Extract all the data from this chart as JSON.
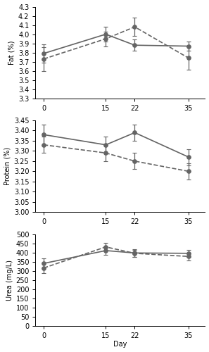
{
  "days": [
    0,
    15,
    22,
    35
  ],
  "fat": {
    "control_mean": [
      3.79,
      4.0,
      3.88,
      3.87
    ],
    "control_err": [
      0.1,
      0.08,
      0.06,
      0.05
    ],
    "treatment_mean": [
      3.73,
      3.95,
      4.08,
      3.74
    ],
    "treatment_err": [
      0.13,
      0.08,
      0.1,
      0.13
    ],
    "ylabel": "Fat (%)",
    "ylim": [
      3.3,
      4.3
    ],
    "yticks": [
      3.3,
      3.4,
      3.5,
      3.6,
      3.7,
      3.8,
      3.9,
      4.0,
      4.1,
      4.2,
      4.3
    ]
  },
  "protein": {
    "control_mean": [
      3.38,
      3.33,
      3.39,
      3.27
    ],
    "control_err": [
      0.05,
      0.04,
      0.04,
      0.04
    ],
    "treatment_mean": [
      3.33,
      3.29,
      3.25,
      3.2
    ],
    "treatment_err": [
      0.04,
      0.04,
      0.04,
      0.04
    ],
    "ylabel": "Protein (%)",
    "ylim": [
      3.0,
      3.45
    ],
    "yticks": [
      3.0,
      3.05,
      3.1,
      3.15,
      3.2,
      3.25,
      3.3,
      3.35,
      3.4,
      3.45
    ]
  },
  "urea": {
    "control_mean": [
      340,
      410,
      397,
      395
    ],
    "control_err": [
      28,
      22,
      20,
      18
    ],
    "treatment_mean": [
      315,
      430,
      395,
      378
    ],
    "treatment_err": [
      28,
      22,
      20,
      22
    ],
    "ylabel": "Urea (mg/L)",
    "ylim": [
      0,
      500
    ],
    "yticks": [
      0,
      50,
      100,
      150,
      200,
      250,
      300,
      350,
      400,
      450,
      500
    ]
  },
  "line_color": "#646464",
  "control_linestyle": "-",
  "treatment_linestyle": "--",
  "marker": "o",
  "markersize": 4,
  "linewidth": 1.2,
  "capsize": 2.5,
  "elinewidth": 0.9,
  "xlabel": "Day",
  "xticks": [
    0,
    15,
    22,
    35
  ],
  "xlim": [
    -2,
    39
  ]
}
